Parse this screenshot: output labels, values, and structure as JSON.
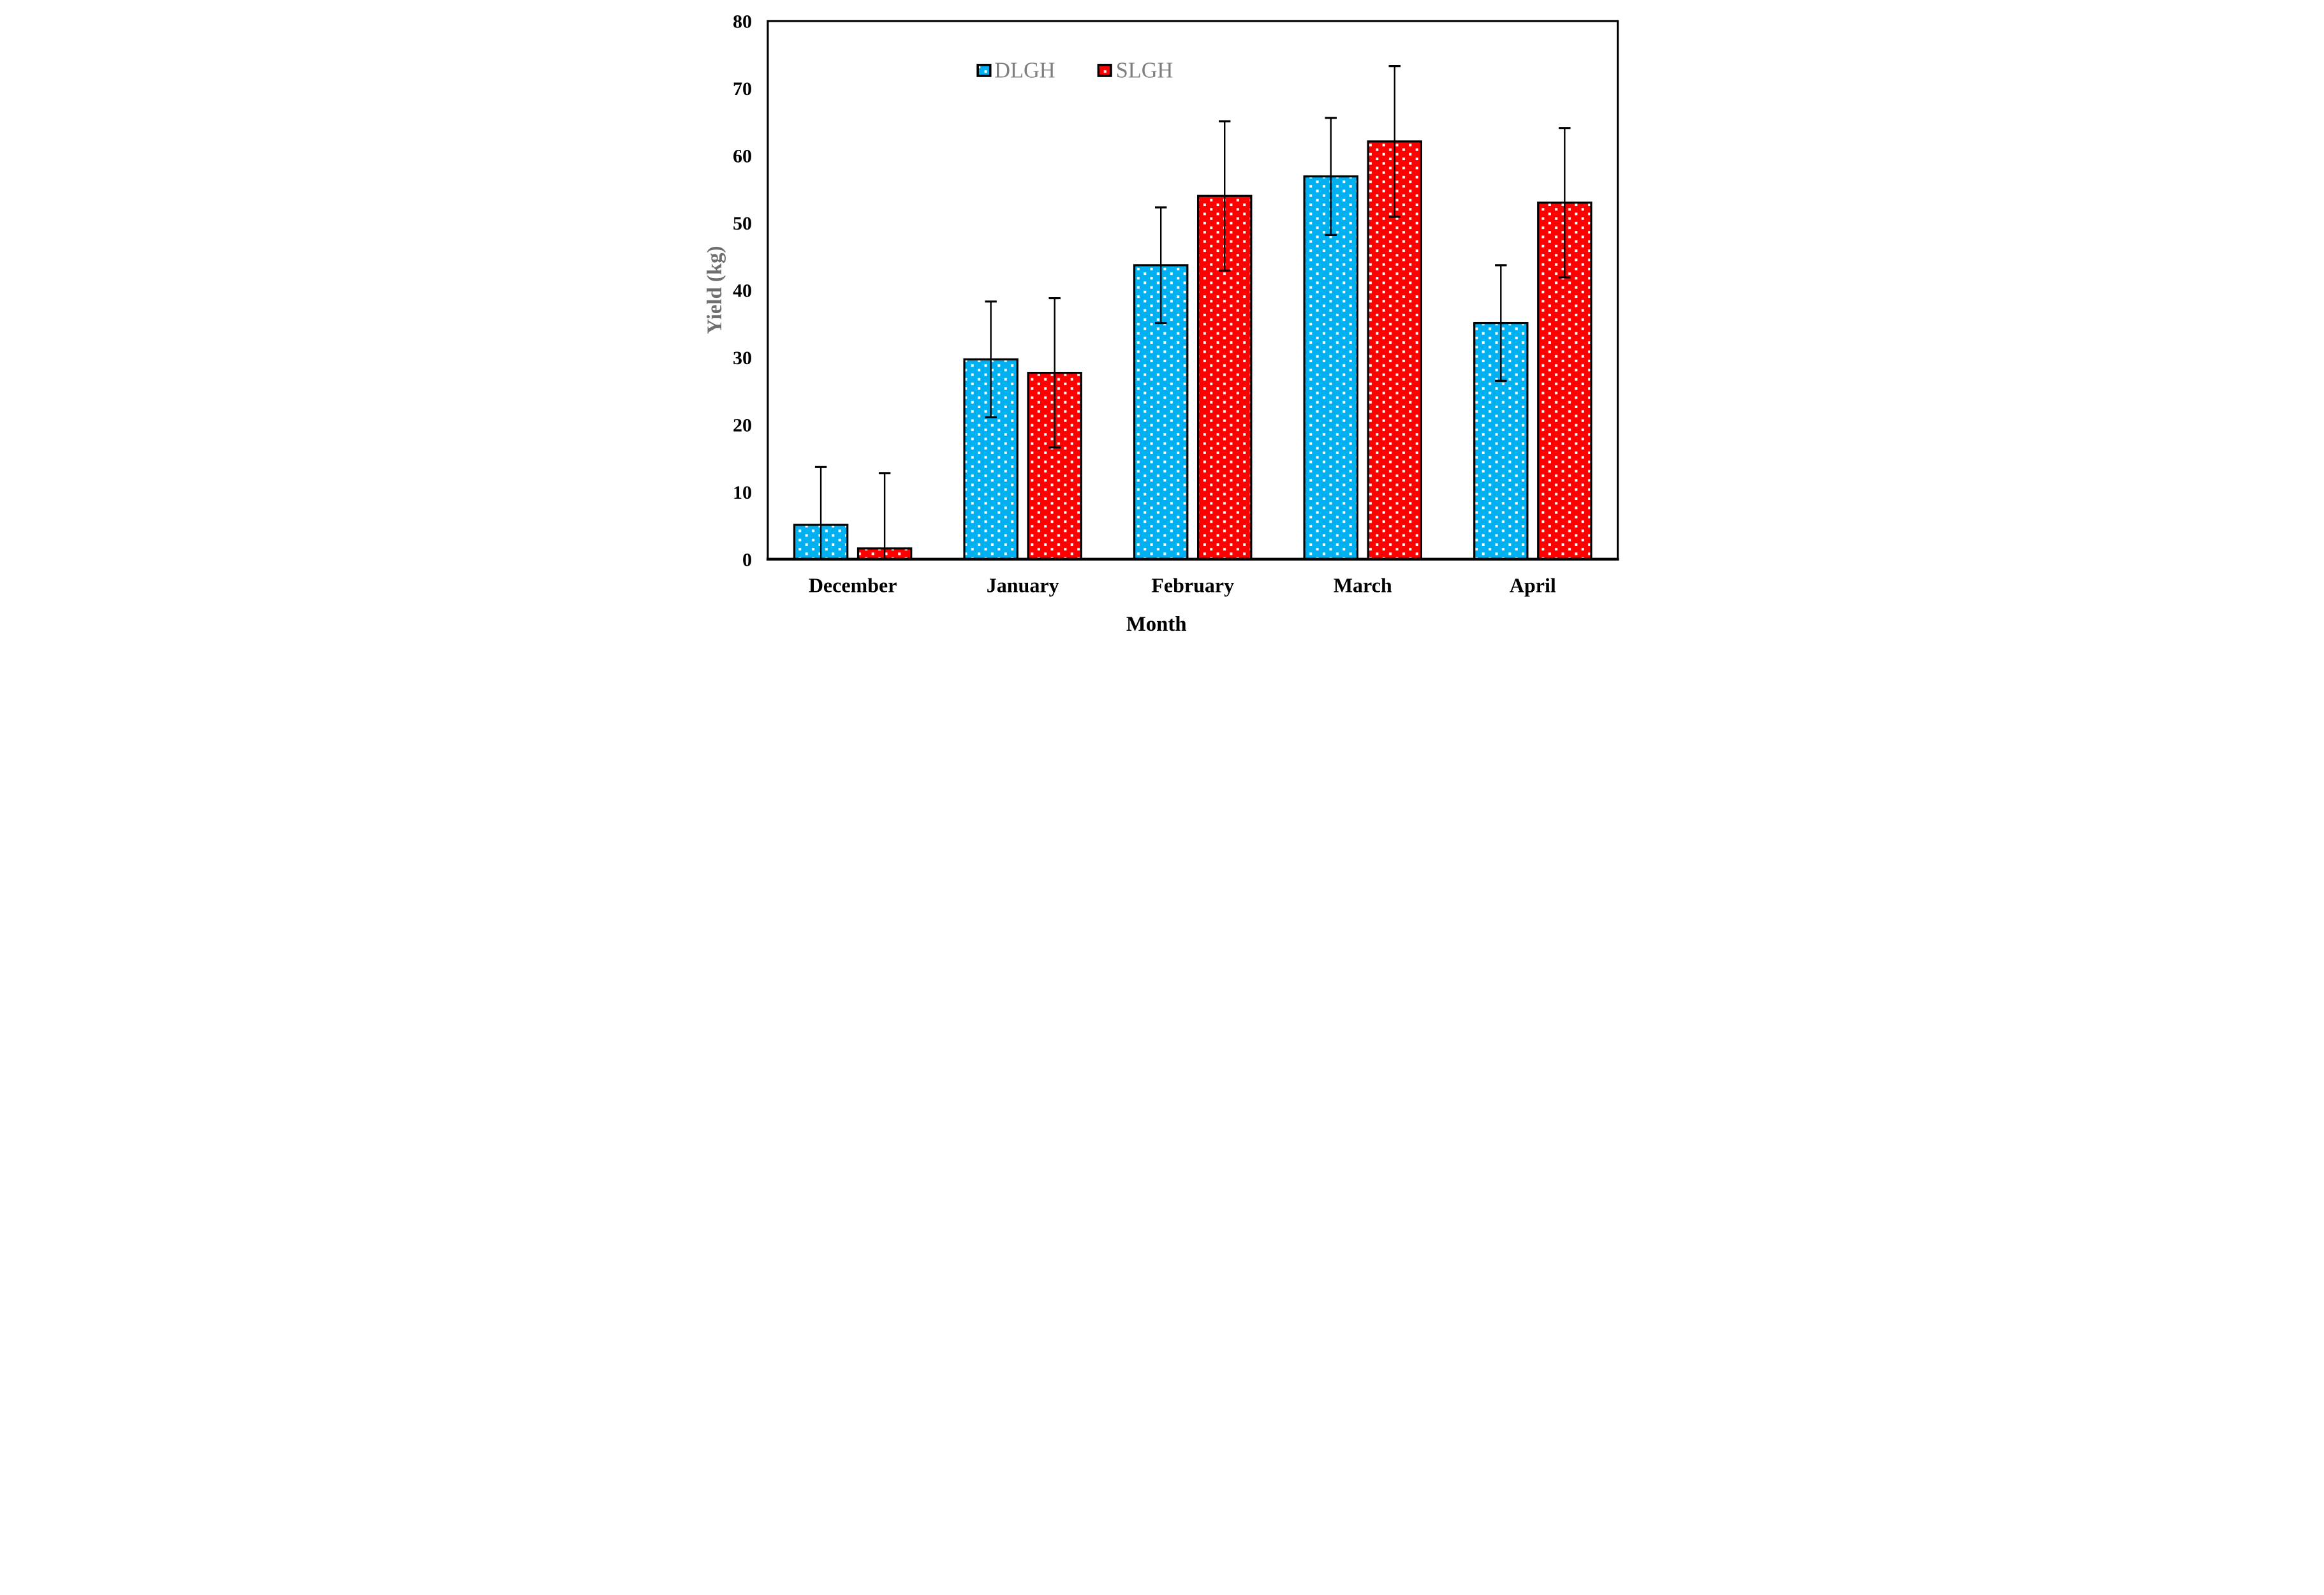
{
  "chart_data": {
    "type": "bar",
    "title": "",
    "xlabel": "Month",
    "ylabel": "Yield (kg)",
    "categories": [
      "December",
      "January",
      "February",
      "March",
      "April"
    ],
    "series": [
      {
        "name": "DLGH",
        "color": "#00B0F0",
        "pattern": "white polka dots on blue, black outline",
        "values": [
          5.1,
          29.7,
          43.7,
          56.9,
          35.1
        ],
        "errors": [
          8.6,
          8.6,
          8.6,
          8.7,
          8.6
        ]
      },
      {
        "name": "SLGH",
        "color": "#FF0000",
        "pattern": "white polka dots on red, black outline",
        "values": [
          1.6,
          27.7,
          54.0,
          62.1,
          53.0
        ],
        "errors": [
          11.2,
          11.1,
          11.1,
          11.2,
          11.1
        ]
      }
    ],
    "ylim": [
      0,
      80
    ],
    "ytick_step": 10,
    "y_ticks": [
      "0",
      "10",
      "20",
      "30",
      "40",
      "50",
      "60",
      "70",
      "80"
    ],
    "grid": false,
    "legend_position": "inside top, left of center",
    "error_bars": "symmetric whiskers with caps, clipped at 0 (no bottom cap in December)",
    "frame": "full black plot box, white background"
  }
}
